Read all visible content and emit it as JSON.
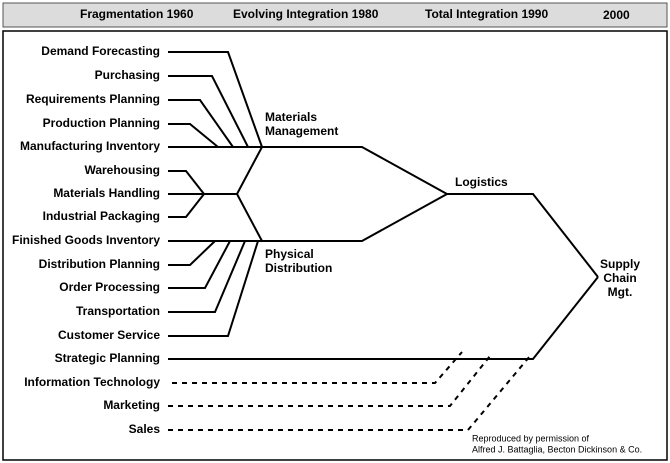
{
  "header": {
    "periods": [
      "Fragmentation  1960",
      "Evolving Integration  1980",
      "Total Integration  1990",
      "2000"
    ]
  },
  "functions": [
    "Demand Forecasting",
    "Purchasing",
    "Requirements Planning",
    "Production Planning",
    "Manufacturing Inventory",
    "Warehousing",
    "Materials Handling",
    "Industrial Packaging",
    "Finished Goods Inventory",
    "Distribution Planning",
    "Order Processing",
    "Transportation",
    "Customer Service",
    "Strategic Planning",
    "Information Technology",
    "Marketing",
    "Sales"
  ],
  "nodes": {
    "materials_management": [
      "Materials",
      "Management"
    ],
    "physical_distribution": [
      "Physical",
      "Distribution"
    ],
    "logistics": "Logistics",
    "supply_chain": [
      "Supply",
      "Chain",
      "Mgt."
    ]
  },
  "footnote": [
    "Reproduced by permission of",
    "Alfred J. Battaglia, Becton Dickinson & Co."
  ]
}
